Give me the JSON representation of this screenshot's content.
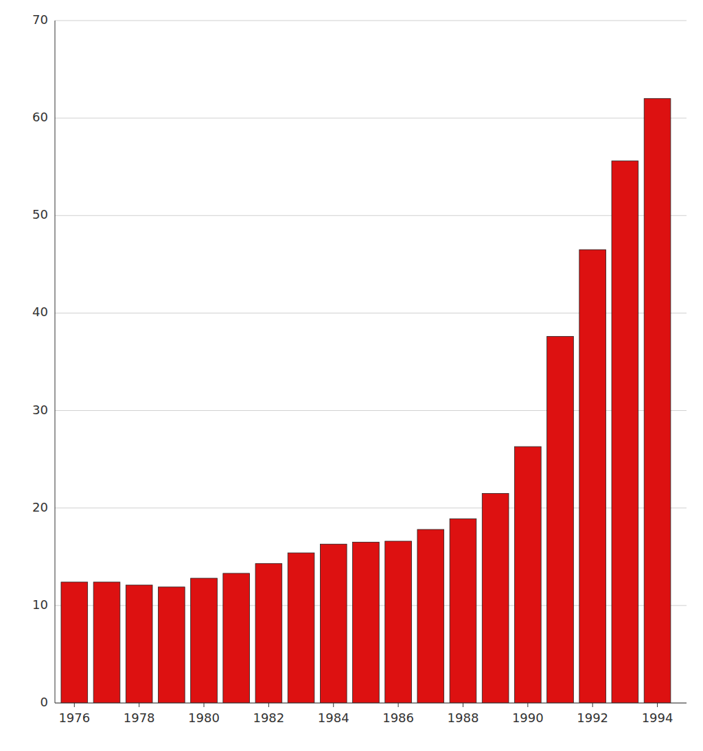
{
  "chart_data": {
    "type": "bar",
    "x": [
      1976,
      1977,
      1978,
      1979,
      1980,
      1981,
      1982,
      1983,
      1984,
      1985,
      1986,
      1987,
      1988,
      1989,
      1990,
      1991,
      1992,
      1993,
      1994
    ],
    "values": [
      12.4,
      12.4,
      12.1,
      11.9,
      12.8,
      13.3,
      14.3,
      15.4,
      16.3,
      16.5,
      16.6,
      17.8,
      18.9,
      21.5,
      26.3,
      37.6,
      46.5,
      55.6,
      62.0
    ],
    "color": "#dd1111",
    "xlim": [
      1975.4,
      1994.9
    ],
    "xticks": [
      1976,
      1978,
      1980,
      1982,
      1984,
      1986,
      1988,
      1990,
      1992,
      1994
    ],
    "ylim": [
      0,
      70
    ],
    "yticks": [
      0,
      10,
      20,
      30,
      40,
      50,
      60,
      70
    ],
    "grid": true
  }
}
